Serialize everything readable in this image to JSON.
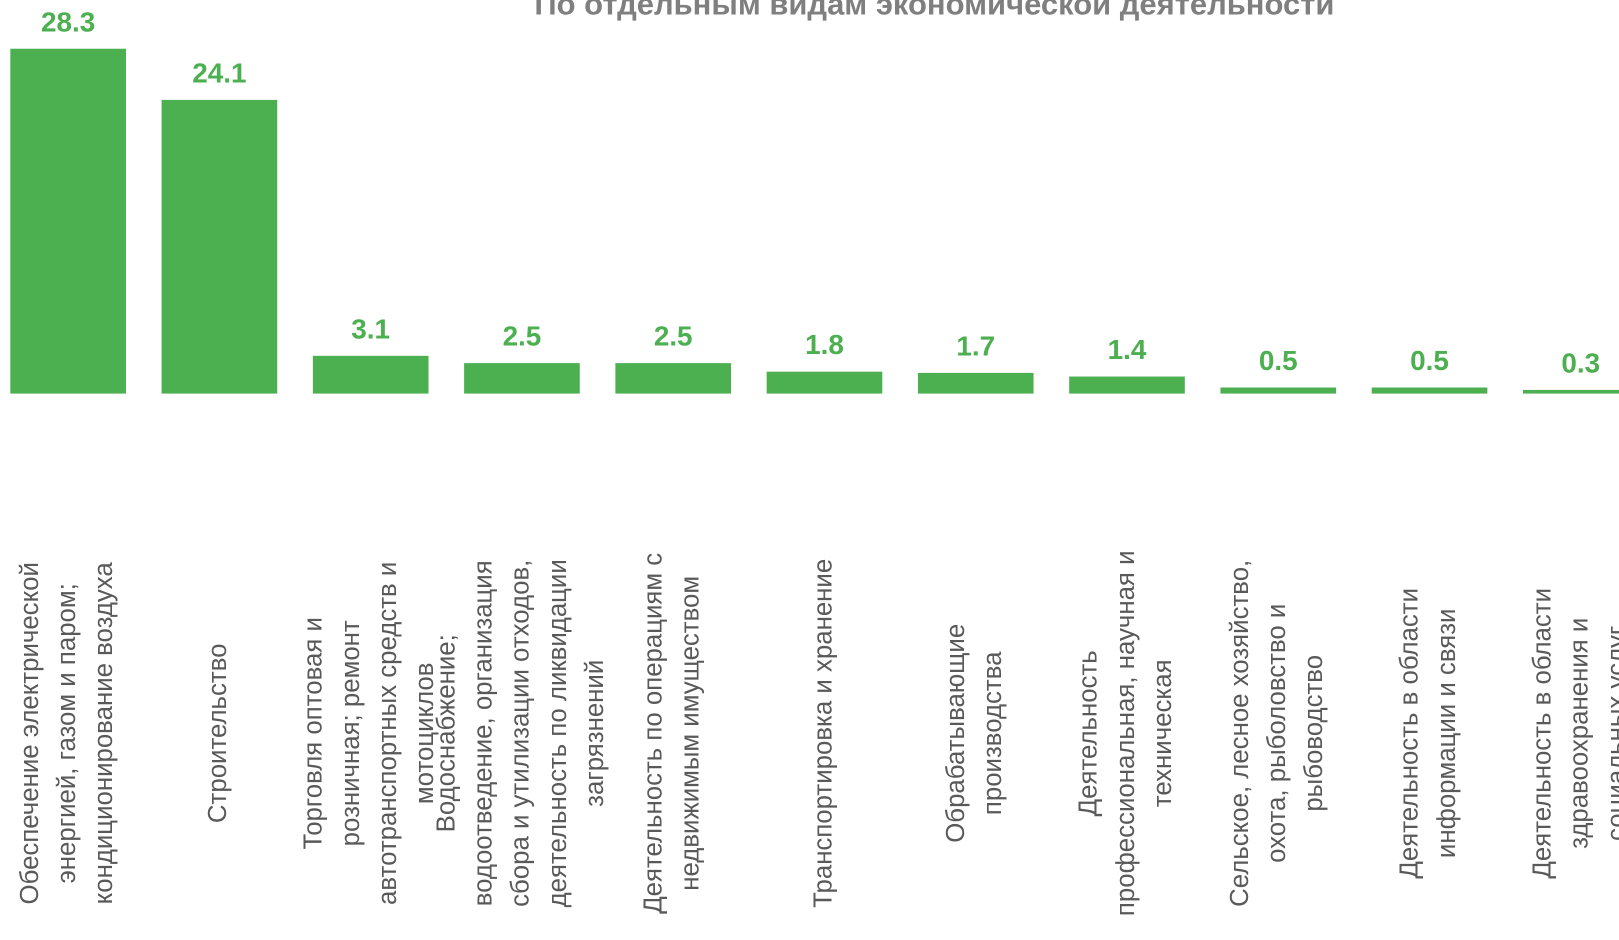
{
  "chart_data": {
    "type": "bar",
    "title": "По отдельным видам экономической деятельности",
    "categories": [
      [
        "Обеспечение электрической",
        "энергией, газом и паром;",
        "кондиционирование воздуха"
      ],
      [
        "Строительство"
      ],
      [
        "Торговля оптовая и",
        "розничная; ремонт",
        "автотранспортных средств и",
        "мотоциклов"
      ],
      [
        "Водоснабжение;",
        "водоотведение, организация",
        "сбора и утилизации отходов,",
        "деятельность по ликвидации",
        "загрязнений"
      ],
      [
        "Деятельность по операциям с",
        "недвижимым имуществом"
      ],
      [
        "Транспортировка и хранение"
      ],
      [
        "Обрабатывающие",
        "производства"
      ],
      [
        "Деятельность",
        "профессиональная, научная и",
        "техническая"
      ],
      [
        "Сельское, лесное хозяйство,",
        "охота, рыболовство и",
        "рыбоводство"
      ],
      [
        "Деятельность в области",
        "информации и связи"
      ],
      [
        "Деятельность в области",
        "здравоохранения и",
        "социальных услуг"
      ]
    ],
    "values": [
      28.3,
      24.1,
      3.1,
      2.5,
      2.5,
      1.8,
      1.7,
      1.4,
      0.5,
      0.5,
      0.3
    ],
    "color": "#4caf50"
  }
}
